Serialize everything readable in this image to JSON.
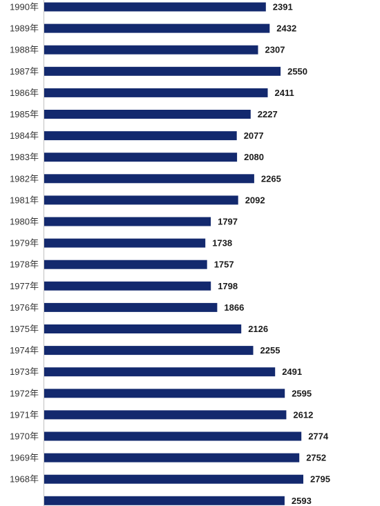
{
  "chart_data": {
    "type": "bar",
    "orientation": "horizontal",
    "categories": [
      "1990年",
      "1989年",
      "1988年",
      "1987年",
      "1986年",
      "1985年",
      "1984年",
      "1983年",
      "1982年",
      "1981年",
      "1980年",
      "1979年",
      "1978年",
      "1977年",
      "1976年",
      "1975年",
      "1974年",
      "1973年",
      "1972年",
      "1971年",
      "1970年",
      "1969年",
      "1968年",
      ""
    ],
    "values": [
      2391,
      2432,
      2307,
      2550,
      2411,
      2227,
      2077,
      2080,
      2265,
      2092,
      1797,
      1738,
      1757,
      1798,
      1866,
      2126,
      2255,
      2491,
      2595,
      2612,
      2774,
      2752,
      2795,
      2593
    ],
    "data_labels": [
      "2391",
      "2432",
      "2307",
      "2550",
      "2411",
      "2227",
      "2077",
      "2080",
      "2265",
      "2092",
      "1797",
      "1738",
      "1757",
      "1798",
      "1866",
      "2126",
      "2255",
      "2491",
      "2595",
      "2612",
      "2774",
      "2752",
      "2795",
      "2593"
    ],
    "xlim": [
      0,
      2795
    ],
    "bar_color": "#13296e",
    "grid": false,
    "legend": "none"
  }
}
